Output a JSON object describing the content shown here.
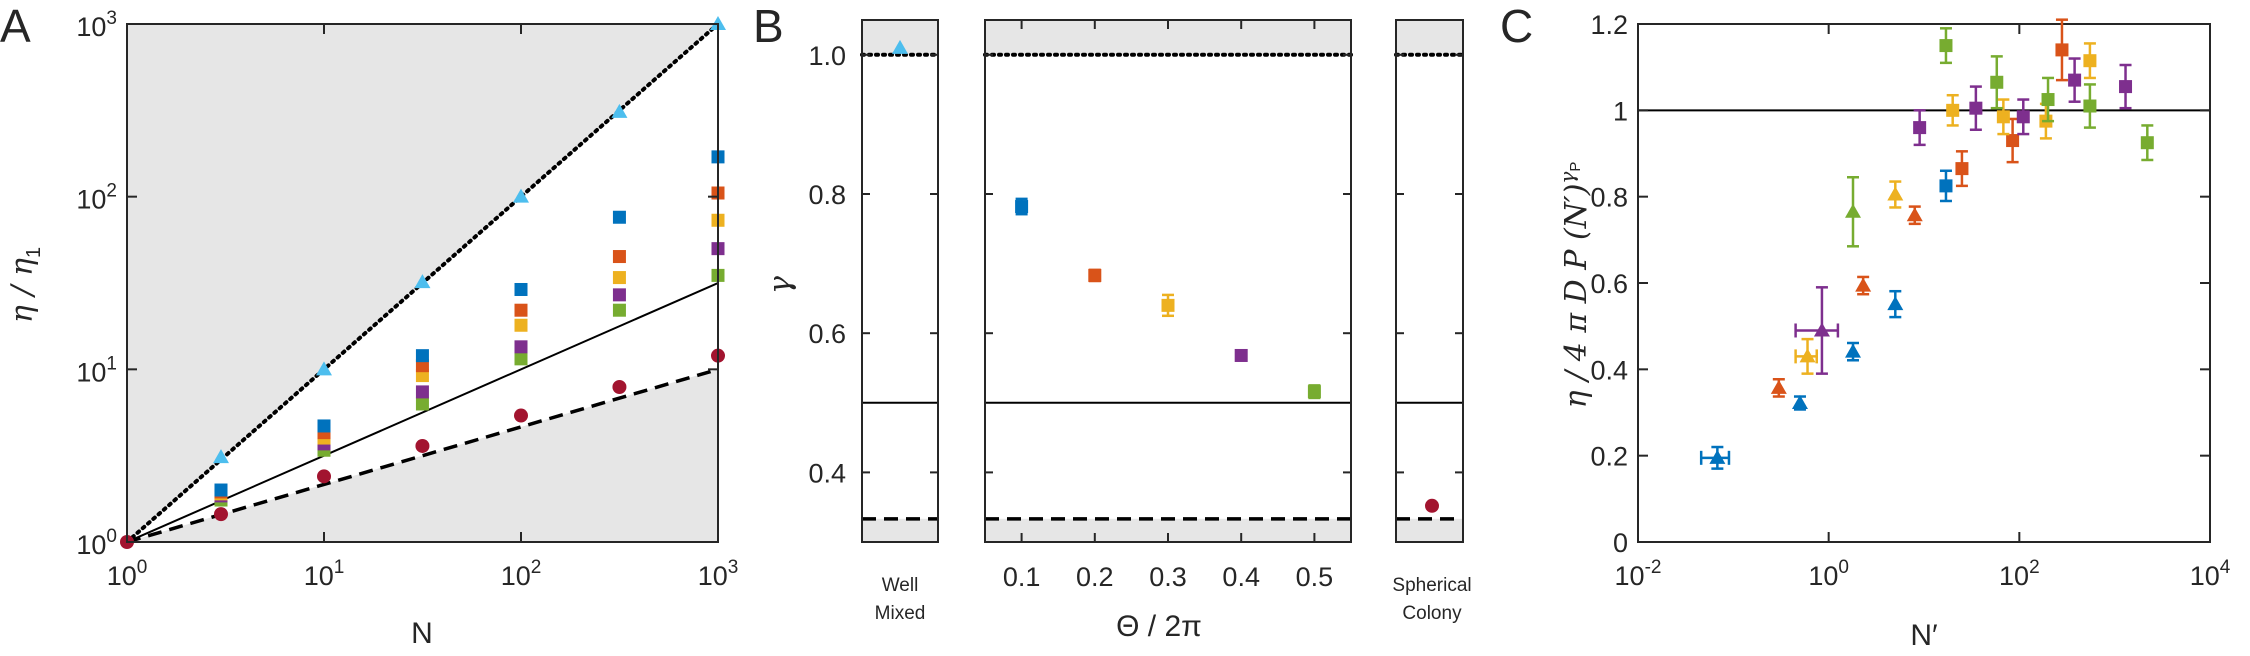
{
  "colors": {
    "blue": "#0072BD",
    "orange": "#D95319",
    "yellow": "#EDB120",
    "purple": "#7E2F8E",
    "green": "#77AC30",
    "cyan": "#4DBEEE",
    "red": "#A2142F",
    "shade": "#E6E6E6"
  },
  "panels": {
    "A": {
      "letter": "A",
      "xlabel": "N",
      "ylabel": "η / η",
      "ylabel_sub": "1",
      "tick_base": "10"
    },
    "B": {
      "letter": "B",
      "ylabel": "γ",
      "xlabel": "Θ / 2π",
      "left_label": [
        "Well",
        "Mixed"
      ],
      "right_label": [
        "Spherical",
        "Colony"
      ]
    },
    "C": {
      "letter": "C",
      "xlabel": "N′",
      "ylabel": "η  / 4 π D P (N′)",
      "ylabel_sup": "γ",
      "ylabel_supsub": "P",
      "tick_base": "10"
    }
  },
  "chart_data": [
    {
      "panel": "A",
      "type": "scatter",
      "xscale": "log",
      "yscale": "log",
      "xlim": [
        1,
        1000
      ],
      "ylim": [
        1,
        1000
      ],
      "xticks": [
        {
          "exp": "0"
        },
        {
          "exp": "1"
        },
        {
          "exp": "2"
        },
        {
          "exp": "3"
        }
      ],
      "yticks": [
        {
          "exp": "0"
        },
        {
          "exp": "1"
        },
        {
          "exp": "2"
        },
        {
          "exp": "3"
        }
      ],
      "x": [
        1,
        3,
        10,
        31.6,
        100,
        316,
        1000
      ],
      "series": [
        {
          "color": "cyan",
          "marker": "triangle",
          "values": [
            1,
            3.1,
            10,
            32,
            100,
            310,
            1000
          ]
        },
        {
          "color": "blue",
          "marker": "square",
          "values": [
            1,
            2.0,
            4.7,
            12,
            29,
            76,
            170
          ]
        },
        {
          "color": "orange",
          "marker": "square",
          "values": [
            1,
            1.95,
            4.3,
            10.5,
            22,
            45,
            105
          ]
        },
        {
          "color": "yellow",
          "marker": "square",
          "values": [
            1,
            1.9,
            4.0,
            9.2,
            18,
            34,
            73
          ]
        },
        {
          "color": "purple",
          "marker": "square",
          "values": [
            1,
            1.85,
            3.7,
            7.4,
            13.5,
            27,
            50
          ]
        },
        {
          "color": "green",
          "marker": "square",
          "values": [
            1,
            1.75,
            3.4,
            6.3,
            11.5,
            22,
            35
          ]
        },
        {
          "color": "red",
          "marker": "circle",
          "values": [
            1,
            1.45,
            2.4,
            3.6,
            5.4,
            7.9,
            12
          ]
        }
      ],
      "reference_lines": [
        {
          "style": "dotted",
          "exponent": 1
        },
        {
          "style": "solid",
          "exponent": 0.5
        },
        {
          "style": "dashed",
          "exponent": 0.3333
        }
      ],
      "shading": "outside region between exponent 1/3 and 1 bounds"
    },
    {
      "panel": "B",
      "type": "scatter",
      "ylim": [
        0.3,
        1.05
      ],
      "yticks": [
        "0.4",
        "0.6",
        "0.8",
        "1.0"
      ],
      "xlim": [
        0.05,
        0.55
      ],
      "xticks": [
        "0.1",
        "0.2",
        "0.3",
        "0.4",
        "0.5"
      ],
      "points": [
        {
          "x": 0.1,
          "y": 0.782,
          "err": 0.011,
          "color": "blue"
        },
        {
          "x": 0.2,
          "y": 0.683,
          "err": 0.008,
          "color": "orange"
        },
        {
          "x": 0.3,
          "y": 0.64,
          "err": 0.015,
          "color": "yellow"
        },
        {
          "x": 0.4,
          "y": 0.568,
          "err": 0.006,
          "color": "purple"
        },
        {
          "x": 0.5,
          "y": 0.516,
          "err": 0.009,
          "color": "green"
        }
      ],
      "well_mixed": {
        "y": 1.01,
        "color": "cyan",
        "marker": "triangle"
      },
      "spherical_colony": {
        "y": 0.352,
        "color": "red",
        "marker": "circle"
      },
      "reference_lines": [
        {
          "style": "dotted",
          "y": 1.0
        },
        {
          "style": "solid",
          "y": 0.5
        },
        {
          "style": "dashed",
          "y": 0.3333
        }
      ]
    },
    {
      "panel": "C",
      "type": "scatter",
      "xscale": "log",
      "xlim": [
        0.01,
        10000
      ],
      "ylim": [
        0,
        1.2
      ],
      "xticks": [
        {
          "exp": "-2"
        },
        {
          "exp": "0"
        },
        {
          "exp": "2"
        },
        {
          "exp": "4"
        }
      ],
      "yticks": [
        "0",
        "0.2",
        "0.4",
        "0.6",
        "0.8",
        "1",
        "1.2"
      ],
      "reference_lines": [
        {
          "style": "solid",
          "y": 1.0
        }
      ],
      "points": [
        {
          "x": 0.068,
          "y": 0.195,
          "err": 0.025,
          "color": "blue",
          "marker": "triangle",
          "xerr": 0.022
        },
        {
          "x": 0.5,
          "y": 0.322,
          "err": 0.015,
          "color": "blue",
          "marker": "triangle"
        },
        {
          "x": 1.8,
          "y": 0.441,
          "err": 0.02,
          "color": "blue",
          "marker": "triangle"
        },
        {
          "x": 5.0,
          "y": 0.551,
          "err": 0.03,
          "color": "blue",
          "marker": "triangle"
        },
        {
          "x": 17,
          "y": 0.825,
          "err": 0.035,
          "color": "blue",
          "marker": "square"
        },
        {
          "x": 0.3,
          "y": 0.357,
          "err": 0.02,
          "color": "orange",
          "marker": "triangle"
        },
        {
          "x": 2.3,
          "y": 0.594,
          "err": 0.02,
          "color": "orange",
          "marker": "triangle"
        },
        {
          "x": 8.0,
          "y": 0.757,
          "err": 0.02,
          "color": "orange",
          "marker": "triangle"
        },
        {
          "x": 25,
          "y": 0.865,
          "err": 0.04,
          "color": "orange",
          "marker": "square"
        },
        {
          "x": 85,
          "y": 0.93,
          "err": 0.05,
          "color": "orange",
          "marker": "square"
        },
        {
          "x": 280,
          "y": 1.14,
          "err": 0.07,
          "color": "orange",
          "marker": "square"
        },
        {
          "x": 0.6,
          "y": 0.43,
          "err": 0.04,
          "color": "yellow",
          "marker": "triangle",
          "xerr": 0.15
        },
        {
          "x": 5.0,
          "y": 0.805,
          "err": 0.03,
          "color": "yellow",
          "marker": "triangle"
        },
        {
          "x": 20,
          "y": 1.0,
          "err": 0.035,
          "color": "yellow",
          "marker": "square"
        },
        {
          "x": 68,
          "y": 0.985,
          "err": 0.04,
          "color": "yellow",
          "marker": "square"
        },
        {
          "x": 190,
          "y": 0.975,
          "err": 0.04,
          "color": "yellow",
          "marker": "square"
        },
        {
          "x": 550,
          "y": 1.115,
          "err": 0.04,
          "color": "yellow",
          "marker": "square"
        },
        {
          "x": 0.85,
          "y": 0.49,
          "err": 0.1,
          "color": "purple",
          "marker": "triangle",
          "xerr": 0.4
        },
        {
          "x": 9,
          "y": 0.96,
          "err": 0.04,
          "color": "purple",
          "marker": "square"
        },
        {
          "x": 35,
          "y": 1.005,
          "err": 0.05,
          "color": "purple",
          "marker": "square"
        },
        {
          "x": 110,
          "y": 0.985,
          "err": 0.04,
          "color": "purple",
          "marker": "square"
        },
        {
          "x": 380,
          "y": 1.07,
          "err": 0.05,
          "color": "purple",
          "marker": "square"
        },
        {
          "x": 1300,
          "y": 1.055,
          "err": 0.05,
          "color": "purple",
          "marker": "square"
        },
        {
          "x": 1.8,
          "y": 0.765,
          "err": 0.08,
          "color": "green",
          "marker": "triangle"
        },
        {
          "x": 17,
          "y": 1.15,
          "err": 0.04,
          "color": "green",
          "marker": "square"
        },
        {
          "x": 58,
          "y": 1.065,
          "err": 0.06,
          "color": "green",
          "marker": "square"
        },
        {
          "x": 200,
          "y": 1.025,
          "err": 0.05,
          "color": "green",
          "marker": "square"
        },
        {
          "x": 550,
          "y": 1.01,
          "err": 0.05,
          "color": "green",
          "marker": "square"
        },
        {
          "x": 2200,
          "y": 0.925,
          "err": 0.04,
          "color": "green",
          "marker": "square"
        }
      ]
    }
  ]
}
